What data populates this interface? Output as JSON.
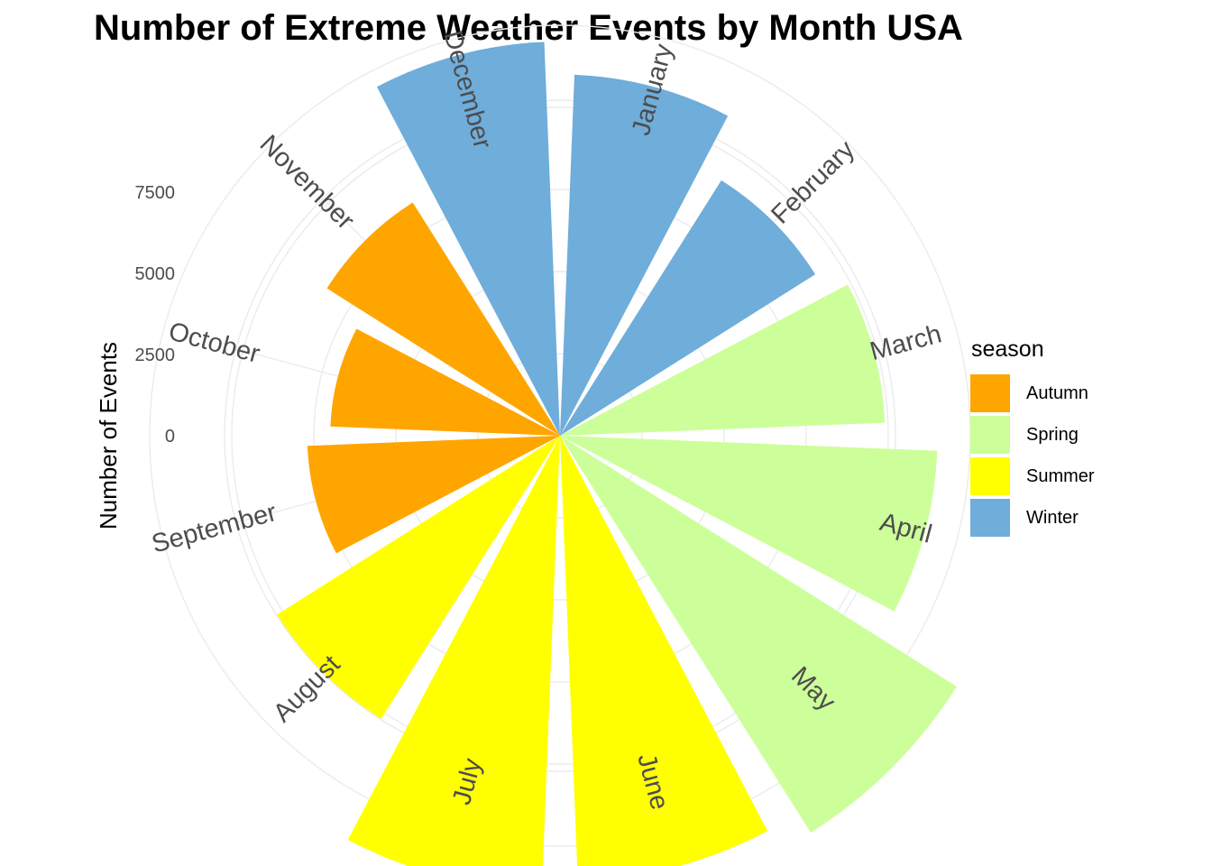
{
  "chart_data": {
    "type": "polar-bar",
    "title": "Number of Extreme Weather Events by Month USA",
    "ylabel": "Number of Events",
    "categories": [
      "January",
      "February",
      "March",
      "April",
      "May",
      "June",
      "July",
      "August",
      "September",
      "October",
      "November",
      "December"
    ],
    "values": [
      6000,
      4200,
      4900,
      6500,
      9300,
      8600,
      8900,
      5200,
      2700,
      2000,
      3400,
      7000
    ],
    "season_of_month": [
      "Winter",
      "Winter",
      "Spring",
      "Spring",
      "Spring",
      "Summer",
      "Summer",
      "Summer",
      "Autumn",
      "Autumn",
      "Autumn",
      "Winter"
    ],
    "radial_axis": {
      "ticks": [
        0,
        2500,
        5000,
        7500
      ],
      "max": 10000,
      "inner_offset": 4000
    },
    "legend": {
      "title": "season",
      "placement": "right",
      "items": [
        {
          "label": "Autumn",
          "color": "#FFA500"
        },
        {
          "label": "Spring",
          "color": "#CCFF99"
        },
        {
          "label": "Summer",
          "color": "#FFFF00"
        },
        {
          "label": "Winter",
          "color": "#6FADDB"
        }
      ]
    },
    "grid": true
  }
}
